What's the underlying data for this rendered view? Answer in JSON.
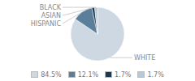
{
  "chart_data": {
    "type": "pie",
    "categories": [
      "WHITE",
      "HISPANIC",
      "ASIAN",
      "BLACK"
    ],
    "values": [
      84.5,
      12.1,
      1.7,
      1.7
    ],
    "value_labels": [
      "84.5%",
      "12.1%",
      "1.7%",
      "1.7%"
    ],
    "colors": [
      "#cdd8e3",
      "#5b7f9a",
      "#1e3a52",
      "#b8c9d6"
    ],
    "legend": "bottom"
  }
}
